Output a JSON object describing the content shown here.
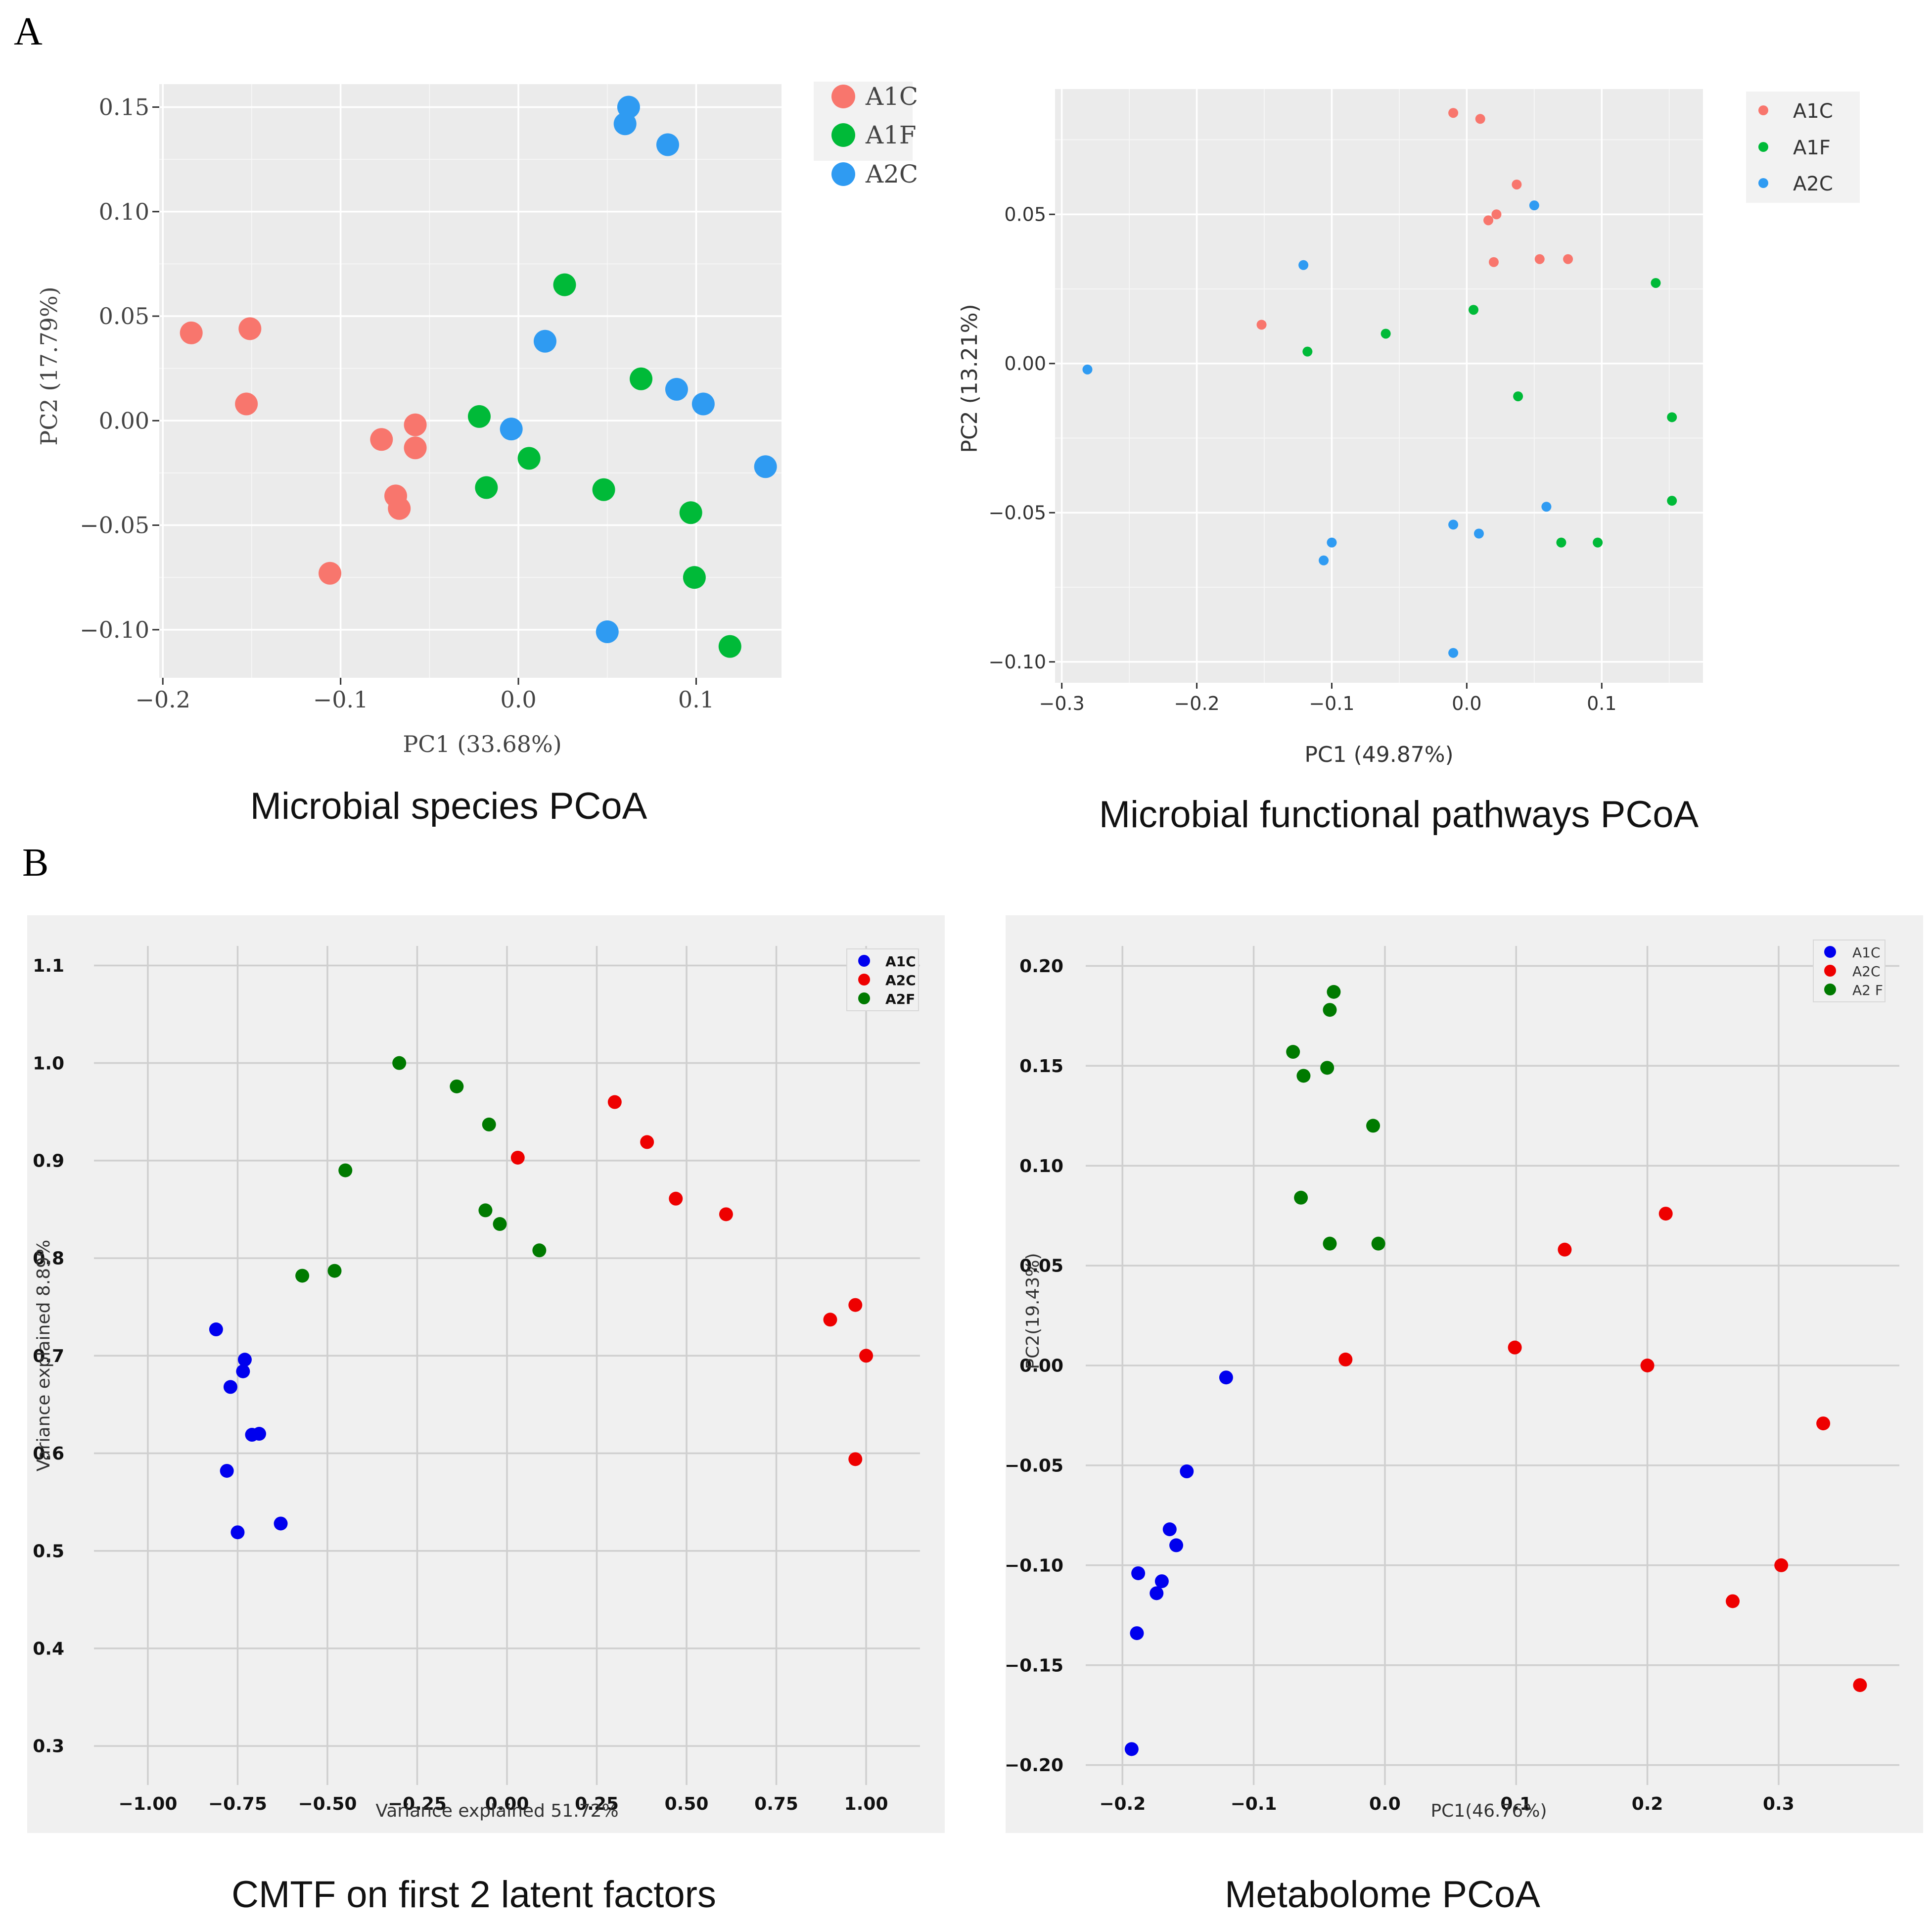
{
  "panel_labels": {
    "a": "A",
    "b": "B"
  },
  "captions": {
    "species": "Microbial species PCoA",
    "functional": "Microbial functional pathways PCoA",
    "cmtf": "CMTF on first 2 latent factors",
    "metabolome": "Metabolome PCoA"
  },
  "colors": {
    "A1C_a": "#f8766d",
    "A1F_a": "#00ba38",
    "A2C_a": "#2f9bf2",
    "A1C_b": "#0000ee",
    "A2C_b": "#ee0000",
    "A2F_b": "#007a00"
  },
  "chart_data": [
    {
      "id": "species",
      "type": "scatter",
      "title": "Microbial species PCoA",
      "xlabel": "PC1 (33.68%)",
      "ylabel": "PC2 (17.79%)",
      "xlim": [
        -0.202,
        0.148
      ],
      "ylim": [
        -0.123,
        0.161
      ],
      "xticks": [
        -0.2,
        -0.1,
        0.0,
        0.1
      ],
      "xtick_labels": [
        "−0.2",
        "−0.1",
        "0.0",
        "0.1"
      ],
      "yticks": [
        -0.1,
        -0.05,
        0.0,
        0.05,
        0.1,
        0.15
      ],
      "ytick_labels": [
        "−0.10",
        "−0.05",
        "0.00",
        "0.05",
        "0.10",
        "0.15"
      ],
      "legend": [
        "A1C",
        "A1F",
        "A2C"
      ],
      "series": [
        {
          "name": "A1C",
          "points": [
            [
              -0.184,
              0.042
            ],
            [
              -0.151,
              0.044
            ],
            [
              -0.153,
              0.008
            ],
            [
              -0.106,
              -0.073
            ],
            [
              -0.077,
              -0.009
            ],
            [
              -0.058,
              -0.002
            ],
            [
              -0.058,
              -0.013
            ],
            [
              -0.069,
              -0.036
            ],
            [
              -0.067,
              -0.042
            ]
          ]
        },
        {
          "name": "A1F",
          "points": [
            [
              0.026,
              0.065
            ],
            [
              -0.022,
              0.002
            ],
            [
              -0.018,
              -0.032
            ],
            [
              0.006,
              -0.018
            ],
            [
              0.048,
              -0.033
            ],
            [
              0.069,
              0.02
            ],
            [
              0.097,
              -0.044
            ],
            [
              0.099,
              -0.075
            ],
            [
              0.119,
              -0.108
            ]
          ]
        },
        {
          "name": "A2C",
          "points": [
            [
              0.062,
              0.15
            ],
            [
              0.06,
              0.142
            ],
            [
              0.084,
              0.132
            ],
            [
              0.015,
              0.038
            ],
            [
              -0.004,
              -0.004
            ],
            [
              0.089,
              0.015
            ],
            [
              0.104,
              0.008
            ],
            [
              0.139,
              -0.022
            ],
            [
              0.05,
              -0.101
            ]
          ]
        }
      ]
    },
    {
      "id": "functional",
      "type": "scatter",
      "title": "Microbial functional pathways PCoA",
      "xlabel": "PC1 (49.87%)",
      "ylabel": "PC2 (13.21%)",
      "xlim": [
        -0.305,
        0.175
      ],
      "ylim": [
        -0.107,
        0.092
      ],
      "xticks": [
        -0.3,
        -0.2,
        -0.1,
        0.0,
        0.1
      ],
      "xtick_labels": [
        "−0.3",
        "−0.2",
        "−0.1",
        "0.0",
        "0.1"
      ],
      "yticks": [
        -0.1,
        -0.05,
        0.0,
        0.05
      ],
      "ytick_labels": [
        "−0.10",
        "−0.05",
        "0.00",
        "0.05"
      ],
      "legend": [
        "A1C",
        "A1F",
        "A2C"
      ],
      "series": [
        {
          "name": "A1C",
          "points": [
            [
              -0.01,
              0.084
            ],
            [
              0.01,
              0.082
            ],
            [
              0.037,
              0.06
            ],
            [
              0.016,
              0.048
            ],
            [
              0.022,
              0.05
            ],
            [
              0.02,
              0.034
            ],
            [
              0.054,
              0.035
            ],
            [
              0.075,
              0.035
            ],
            [
              -0.152,
              0.013
            ]
          ]
        },
        {
          "name": "A1F",
          "points": [
            [
              -0.118,
              0.004
            ],
            [
              -0.06,
              0.01
            ],
            [
              0.005,
              0.018
            ],
            [
              0.14,
              0.027
            ],
            [
              0.038,
              -0.011
            ],
            [
              0.152,
              -0.018
            ],
            [
              0.152,
              -0.046
            ],
            [
              0.07,
              -0.06
            ],
            [
              0.097,
              -0.06
            ]
          ]
        },
        {
          "name": "A2C",
          "points": [
            [
              -0.281,
              -0.002
            ],
            [
              -0.121,
              0.033
            ],
            [
              0.05,
              0.053
            ],
            [
              -0.1,
              -0.06
            ],
            [
              -0.106,
              -0.066
            ],
            [
              -0.01,
              -0.054
            ],
            [
              0.009,
              -0.057
            ],
            [
              0.059,
              -0.048
            ],
            [
              -0.01,
              -0.097
            ]
          ]
        }
      ]
    },
    {
      "id": "cmtf",
      "type": "scatter",
      "title": "CMTF on first 2 latent factors",
      "xlabel": "Variance explained 51.72%",
      "ylabel": "Variance explained 8.89%",
      "xlim": [
        -1.15,
        1.15
      ],
      "ylim": [
        0.26,
        1.12
      ],
      "xticks": [
        -1.0,
        -0.75,
        -0.5,
        -0.25,
        0.0,
        0.25,
        0.5,
        0.75,
        1.0
      ],
      "xtick_labels": [
        "−1.00",
        "−0.75",
        "−0.50",
        "−0.25",
        "0.00",
        "0.25",
        "0.50",
        "0.75",
        "1.00"
      ],
      "yticks": [
        0.3,
        0.4,
        0.5,
        0.6,
        0.7,
        0.8,
        0.9,
        1.0,
        1.1
      ],
      "ytick_labels": [
        "0.3",
        "0.4",
        "0.5",
        "0.6",
        "0.7",
        "0.8",
        "0.9",
        "1.0",
        "1.1"
      ],
      "legend": [
        "A1C",
        "A2C",
        "A2F"
      ],
      "series": [
        {
          "name": "A1C",
          "points": [
            [
              -0.81,
              0.727
            ],
            [
              -0.73,
              0.696
            ],
            [
              -0.735,
              0.684
            ],
            [
              -0.77,
              0.668
            ],
            [
              -0.71,
              0.619
            ],
            [
              -0.69,
              0.62
            ],
            [
              -0.78,
              0.582
            ],
            [
              -0.75,
              0.519
            ],
            [
              -0.63,
              0.528
            ]
          ]
        },
        {
          "name": "A2C",
          "points": [
            [
              0.3,
              0.96
            ],
            [
              0.39,
              0.919
            ],
            [
              0.03,
              0.903
            ],
            [
              0.47,
              0.861
            ],
            [
              0.61,
              0.845
            ],
            [
              0.9,
              0.737
            ],
            [
              0.97,
              0.752
            ],
            [
              1.0,
              0.7
            ],
            [
              0.97,
              0.594
            ]
          ]
        },
        {
          "name": "A2F",
          "points": [
            [
              -0.3,
              1.0
            ],
            [
              -0.14,
              0.976
            ],
            [
              -0.05,
              0.937
            ],
            [
              -0.45,
              0.89
            ],
            [
              -0.06,
              0.849
            ],
            [
              -0.02,
              0.835
            ],
            [
              0.09,
              0.808
            ],
            [
              -0.57,
              0.782
            ],
            [
              -0.48,
              0.787
            ]
          ]
        }
      ]
    },
    {
      "id": "metabolome",
      "type": "scatter",
      "title": "Metabolome PCoA",
      "xlabel": "PC1(46.76%)",
      "ylabel": "PC2(19.43%)",
      "xlim": [
        -0.228,
        0.392
      ],
      "ylim": [
        -0.21,
        0.21
      ],
      "xticks": [
        -0.2,
        -0.1,
        0.0,
        0.1,
        0.2,
        0.3
      ],
      "xtick_labels": [
        "−0.2",
        "−0.1",
        "0.0",
        "0.1",
        "0.2",
        "0.3"
      ],
      "yticks": [
        -0.2,
        -0.15,
        -0.1,
        -0.05,
        0.0,
        0.05,
        0.1,
        0.15,
        0.2
      ],
      "ytick_labels": [
        "−0.20",
        "−0.15",
        "−0.10",
        "−0.05",
        "0.00",
        "0.05",
        "0.10",
        "0.15",
        "0.20"
      ],
      "legend": [
        "A1C",
        "A2C",
        "A2 F"
      ],
      "series": [
        {
          "name": "A1C",
          "points": [
            [
              -0.121,
              -0.006
            ],
            [
              -0.151,
              -0.053
            ],
            [
              -0.164,
              -0.082
            ],
            [
              -0.159,
              -0.09
            ],
            [
              -0.188,
              -0.104
            ],
            [
              -0.17,
              -0.108
            ],
            [
              -0.174,
              -0.114
            ],
            [
              -0.189,
              -0.134
            ],
            [
              -0.193,
              -0.192
            ]
          ]
        },
        {
          "name": "A2C",
          "points": [
            [
              -0.03,
              0.003
            ],
            [
              0.099,
              0.009
            ],
            [
              0.137,
              0.058
            ],
            [
              0.214,
              0.076
            ],
            [
              0.2,
              0.0
            ],
            [
              0.334,
              -0.029
            ],
            [
              0.302,
              -0.1
            ],
            [
              0.265,
              -0.118
            ],
            [
              0.362,
              -0.16
            ]
          ]
        },
        {
          "name": "A2F",
          "points": [
            [
              -0.039,
              0.187
            ],
            [
              -0.042,
              0.178
            ],
            [
              -0.07,
              0.157
            ],
            [
              -0.062,
              0.145
            ],
            [
              -0.044,
              0.149
            ],
            [
              -0.009,
              0.12
            ],
            [
              -0.064,
              0.084
            ],
            [
              -0.042,
              0.061
            ],
            [
              -0.005,
              0.061
            ]
          ]
        }
      ]
    }
  ]
}
